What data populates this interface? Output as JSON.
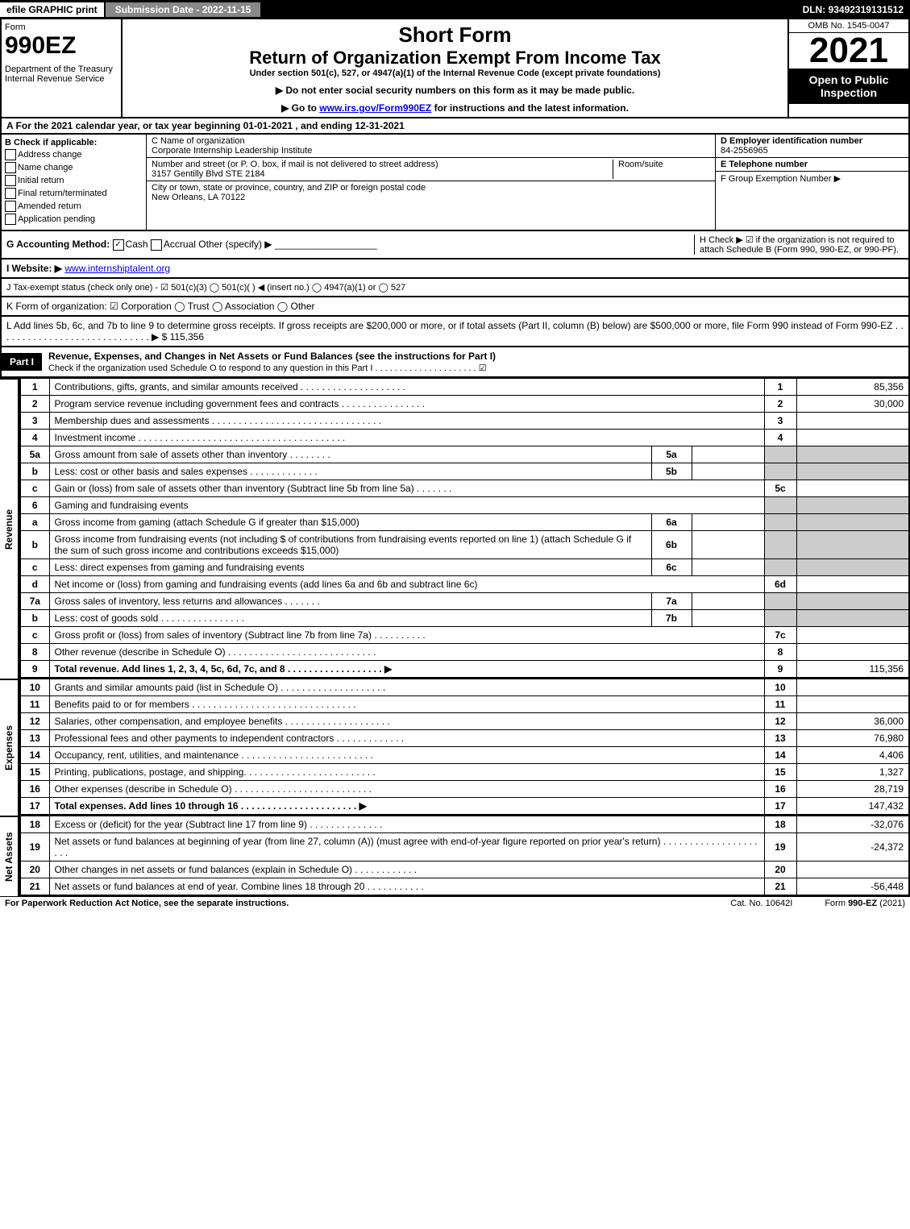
{
  "top": {
    "efile": "efile GRAPHIC print",
    "submission": "Submission Date - 2022-11-15",
    "dln": "DLN: 93492319131512"
  },
  "header": {
    "form": "Form",
    "form_num": "990EZ",
    "dept": "Department of the Treasury\nInternal Revenue Service",
    "short": "Short Form",
    "return": "Return of Organization Exempt From Income Tax",
    "under": "Under section 501(c), 527, or 4947(a)(1) of the Internal Revenue Code (except private foundations)",
    "instr1": "▶ Do not enter social security numbers on this form as it may be made public.",
    "instr2_pre": "▶ Go to ",
    "instr2_link": "www.irs.gov/Form990EZ",
    "instr2_post": " for instructions and the latest information.",
    "omb": "OMB No. 1545-0047",
    "year": "2021",
    "open": "Open to Public Inspection"
  },
  "a": "A  For the 2021 calendar year, or tax year beginning 01-01-2021 , and ending 12-31-2021",
  "b": {
    "title": "B  Check if applicable:",
    "opts": [
      "Address change",
      "Name change",
      "Initial return",
      "Final return/terminated",
      "Amended return",
      "Application pending"
    ]
  },
  "c": {
    "name_label": "C Name of organization",
    "name": "Corporate Internship Leadership Institute",
    "street_label": "Number and street (or P. O. box, if mail is not delivered to street address)",
    "street": "3157 Gentilly Blvd STE 2184",
    "room_label": "Room/suite",
    "city_label": "City or town, state or province, country, and ZIP or foreign postal code",
    "city": "New Orleans, LA  70122"
  },
  "d": {
    "ein_label": "D Employer identification number",
    "ein": "84-2556965",
    "tel_label": "E Telephone number",
    "grp_label": "F Group Exemption Number  ▶"
  },
  "g": {
    "label": "G Accounting Method:",
    "cash": "Cash",
    "accrual": "Accrual",
    "other": "Other (specify) ▶"
  },
  "h": "H  Check ▶ ☑ if the organization is not required to attach Schedule B (Form 990, 990-EZ, or 990-PF).",
  "i": {
    "label": "I Website: ▶",
    "val": "www.internshiptalent.org"
  },
  "j": "J Tax-exempt status (check only one) - ☑ 501(c)(3) ◯ 501(c)(  ) ◀ (insert no.) ◯ 4947(a)(1) or ◯ 527",
  "k": "K Form of organization:  ☑ Corporation  ◯ Trust  ◯ Association  ◯ Other",
  "l": "L Add lines 5b, 6c, and 7b to line 9 to determine gross receipts. If gross receipts are $200,000 or more, or if total assets (Part II, column (B) below) are $500,000 or more, file Form 990 instead of Form 990-EZ  .  .  .  .  .  .  .  .  .  .  .  .  .  .  .  .  .  .  .  .  .  .  .  .  .  .  .  .  .  ▶ $ 115,356",
  "part1": {
    "label": "Part I",
    "title": "Revenue, Expenses, and Changes in Net Assets or Fund Balances (see the instructions for Part I)",
    "check": "Check if the organization used Schedule O to respond to any question in this Part I .  .  .  .  .  .  .  .  .  .  .  .  .  .  .  .  .  .  .  .  .  ☑"
  },
  "rev_label": "Revenue",
  "exp_label": "Expenses",
  "net_label": "Net Assets",
  "lines": {
    "l1": {
      "n": "1",
      "d": "Contributions, gifts, grants, and similar amounts received",
      "r": "1",
      "v": "85,356"
    },
    "l2": {
      "n": "2",
      "d": "Program service revenue including government fees and contracts",
      "r": "2",
      "v": "30,000"
    },
    "l3": {
      "n": "3",
      "d": "Membership dues and assessments",
      "r": "3",
      "v": ""
    },
    "l4": {
      "n": "4",
      "d": "Investment income",
      "r": "4",
      "v": ""
    },
    "l5a": {
      "n": "5a",
      "d": "Gross amount from sale of assets other than inventory",
      "s": "5a"
    },
    "l5b": {
      "n": "b",
      "d": "Less: cost or other basis and sales expenses",
      "s": "5b"
    },
    "l5c": {
      "n": "c",
      "d": "Gain or (loss) from sale of assets other than inventory (Subtract line 5b from line 5a)",
      "r": "5c",
      "v": ""
    },
    "l6": {
      "n": "6",
      "d": "Gaming and fundraising events"
    },
    "l6a": {
      "n": "a",
      "d": "Gross income from gaming (attach Schedule G if greater than $15,000)",
      "s": "6a"
    },
    "l6b": {
      "n": "b",
      "d": "Gross income from fundraising events (not including $                     of contributions from fundraising events reported on line 1) (attach Schedule G if the sum of such gross income and contributions exceeds $15,000)",
      "s": "6b"
    },
    "l6c": {
      "n": "c",
      "d": "Less: direct expenses from gaming and fundraising events",
      "s": "6c"
    },
    "l6d": {
      "n": "d",
      "d": "Net income or (loss) from gaming and fundraising events (add lines 6a and 6b and subtract line 6c)",
      "r": "6d",
      "v": ""
    },
    "l7a": {
      "n": "7a",
      "d": "Gross sales of inventory, less returns and allowances",
      "s": "7a"
    },
    "l7b": {
      "n": "b",
      "d": "Less: cost of goods sold",
      "s": "7b"
    },
    "l7c": {
      "n": "c",
      "d": "Gross profit or (loss) from sales of inventory (Subtract line 7b from line 7a)",
      "r": "7c",
      "v": ""
    },
    "l8": {
      "n": "8",
      "d": "Other revenue (describe in Schedule O)",
      "r": "8",
      "v": ""
    },
    "l9": {
      "n": "9",
      "d": "Total revenue. Add lines 1, 2, 3, 4, 5c, 6d, 7c, and 8   .  .  .  .  .  .  .  .  .  .  .  .  .  .  .  .  .  .   ▶",
      "r": "9",
      "v": "115,356"
    },
    "l10": {
      "n": "10",
      "d": "Grants and similar amounts paid (list in Schedule O)",
      "r": "10",
      "v": ""
    },
    "l11": {
      "n": "11",
      "d": "Benefits paid to or for members",
      "r": "11",
      "v": ""
    },
    "l12": {
      "n": "12",
      "d": "Salaries, other compensation, and employee benefits",
      "r": "12",
      "v": "36,000"
    },
    "l13": {
      "n": "13",
      "d": "Professional fees and other payments to independent contractors",
      "r": "13",
      "v": "76,980"
    },
    "l14": {
      "n": "14",
      "d": "Occupancy, rent, utilities, and maintenance",
      "r": "14",
      "v": "4,406"
    },
    "l15": {
      "n": "15",
      "d": "Printing, publications, postage, and shipping.",
      "r": "15",
      "v": "1,327"
    },
    "l16": {
      "n": "16",
      "d": "Other expenses (describe in Schedule O)",
      "r": "16",
      "v": "28,719"
    },
    "l17": {
      "n": "17",
      "d": "Total expenses. Add lines 10 through 16    .  .  .  .  .  .  .  .  .  .  .  .  .  .  .  .  .  .  .  .  .  .   ▶",
      "r": "17",
      "v": "147,432"
    },
    "l18": {
      "n": "18",
      "d": "Excess or (deficit) for the year (Subtract line 17 from line 9)",
      "r": "18",
      "v": "-32,076"
    },
    "l19": {
      "n": "19",
      "d": "Net assets or fund balances at beginning of year (from line 27, column (A)) (must agree with end-of-year figure reported on prior year's return)",
      "r": "19",
      "v": "-24,372"
    },
    "l20": {
      "n": "20",
      "d": "Other changes in net assets or fund balances (explain in Schedule O)",
      "r": "20",
      "v": ""
    },
    "l21": {
      "n": "21",
      "d": "Net assets or fund balances at end of year. Combine lines 18 through 20",
      "r": "21",
      "v": "-56,448"
    }
  },
  "footer": {
    "l": "For Paperwork Reduction Act Notice, see the separate instructions.",
    "c": "Cat. No. 10642I",
    "r_pre": "Form ",
    "r_bold": "990-EZ",
    "r_post": " (2021)"
  }
}
